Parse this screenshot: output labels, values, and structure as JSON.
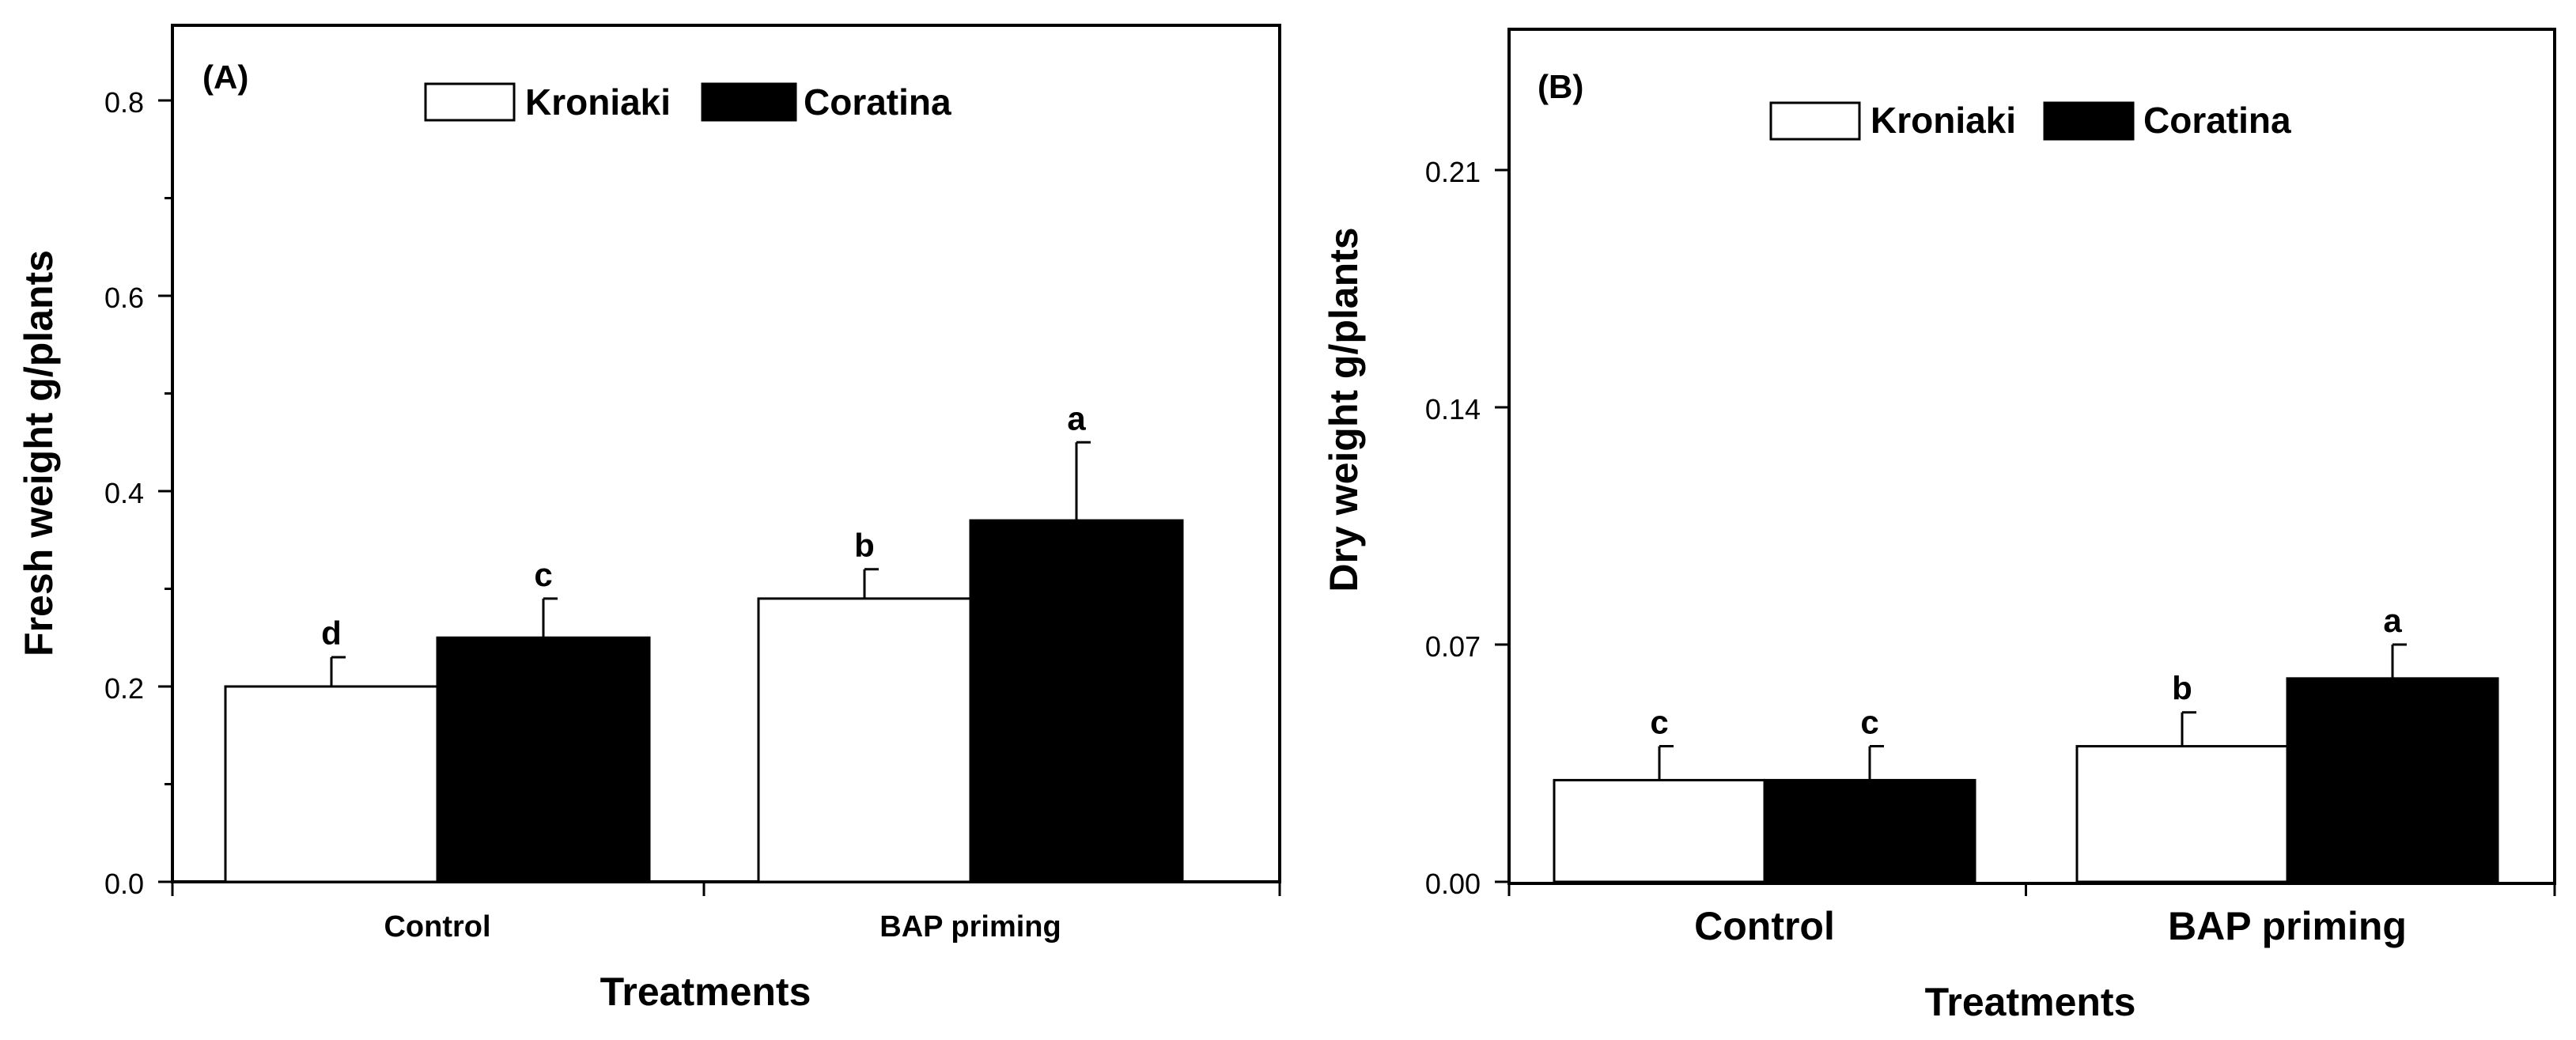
{
  "chart_data": [
    {
      "type": "bar",
      "panel_label": "(A)",
      "title": "",
      "xlabel": "Treatments",
      "ylabel": "Fresh weight g/plants",
      "ylim": [
        0,
        0.87
      ],
      "yticks": [
        0.0,
        0.2,
        0.4,
        0.6,
        0.8
      ],
      "ytick_labels": [
        "0.0",
        "0.2",
        "0.4",
        "0.6",
        "0.8"
      ],
      "minor_ticks": true,
      "categories": [
        "Control",
        "BAP priming"
      ],
      "series": [
        {
          "name": "Kroniaki",
          "fill": "#ffffff",
          "values": [
            0.2,
            0.29
          ],
          "errors": [
            0.03,
            0.03
          ],
          "letters": [
            "d",
            "b"
          ]
        },
        {
          "name": "Coratina",
          "fill": "#000000",
          "values": [
            0.25,
            0.37
          ],
          "errors": [
            0.04,
            0.08
          ],
          "letters": [
            "c",
            "a"
          ]
        }
      ],
      "legend_position": "top-center"
    },
    {
      "type": "bar",
      "panel_label": "(B)",
      "title": "",
      "xlabel": "Treatments",
      "ylabel": "Dry weight g/plants",
      "ylim": [
        0,
        0.25
      ],
      "yticks": [
        0.0,
        0.07,
        0.14,
        0.21
      ],
      "ytick_labels": [
        "0.00",
        "0.07",
        "0.14",
        "0.21"
      ],
      "minor_ticks": false,
      "categories": [
        "Control",
        "BAP priming"
      ],
      "series": [
        {
          "name": "Kroniaki",
          "fill": "#ffffff",
          "values": [
            0.03,
            0.04
          ],
          "errors": [
            0.01,
            0.01
          ],
          "letters": [
            "c",
            "b"
          ]
        },
        {
          "name": "Coratina",
          "fill": "#000000",
          "values": [
            0.03,
            0.06
          ],
          "errors": [
            0.01,
            0.01
          ],
          "letters": [
            "c",
            "a"
          ]
        }
      ],
      "legend_position": "top-center"
    }
  ]
}
